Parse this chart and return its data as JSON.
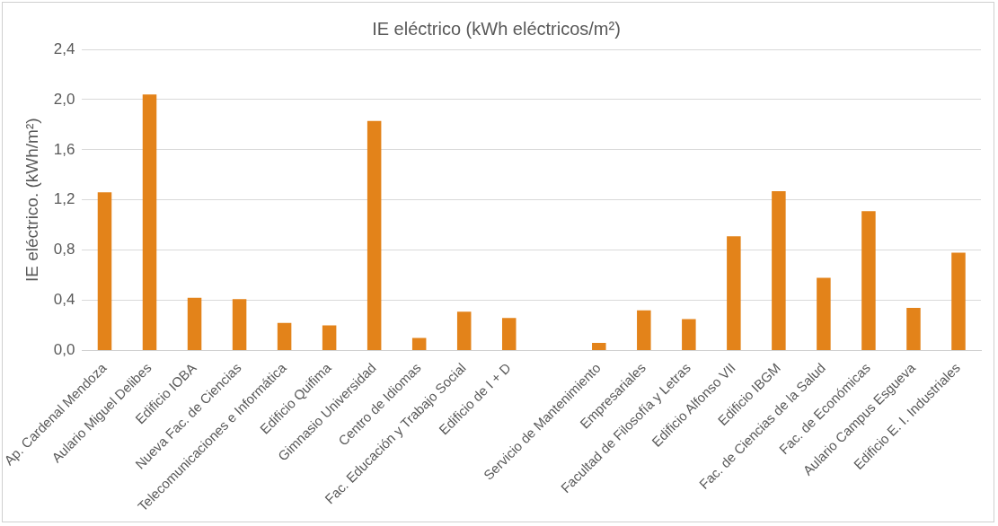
{
  "chart_data": {
    "type": "bar",
    "title": "IE eléctrico (kWh eléctricos/m²)",
    "ylabel": "IE eléctrico. (kWh/m²)",
    "categories": [
      "Ap. Cardenal Mendoza",
      "Aulario Miguel Delibes",
      "Edificio IOBA",
      "Nueva Fac. de Ciencias",
      "Telecomunicaciones e Informática",
      "Edificio Quifima",
      "Gimnasio Universidad",
      "Centro de Idiomas",
      "Fac. Educación y Trabajo Social",
      "Edificio de I + D",
      null,
      "Servicio de Mantenimiento",
      "Empresariales",
      "Facultad de Filosofía y Letras",
      "Edificio Alfonso VII",
      "Edificio IBGM",
      "Fac. de Ciencias de la Salud",
      "Fac. de Económicas",
      "Aulario Campus Esgueva",
      "Edificio E. I. Industriales"
    ],
    "values": [
      1.26,
      2.04,
      0.42,
      0.41,
      0.22,
      0.2,
      1.83,
      0.1,
      0.31,
      0.26,
      null,
      0.06,
      0.32,
      0.25,
      0.91,
      1.27,
      0.58,
      1.11,
      0.34,
      0.78
    ],
    "color": "#e3831a",
    "ylim": [
      0,
      2.4
    ],
    "yticks": [
      {
        "value": 0,
        "label": "0,0"
      },
      {
        "value": 0.4,
        "label": "0,4"
      },
      {
        "value": 0.8,
        "label": "0,8"
      },
      {
        "value": 1.2,
        "label": "1,2"
      },
      {
        "value": 1.6,
        "label": "1,6"
      },
      {
        "value": 2.0,
        "label": "2,0"
      },
      {
        "value": 2.4,
        "label": "2,4"
      }
    ],
    "grid": "y",
    "legend": false
  }
}
